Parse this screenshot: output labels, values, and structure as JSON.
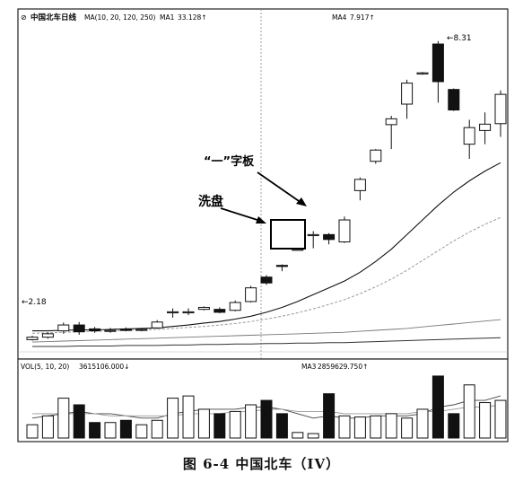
{
  "caption": "图 6-4   中国北车（IV）",
  "main_header": {
    "title": "中国北车日线",
    "ma_params": "MA(10, 20, 120, 250)",
    "ma1_label": "MA1",
    "ma1_value": "33.128↑",
    "ma4_label": "MA4",
    "ma4_value": "7.917↑"
  },
  "volume_header": {
    "title": "VOL(5, 10, 20)",
    "value": "3615106.000↓",
    "ma3_label": "MA3",
    "ma3_value": "2859629.750↑"
  },
  "annotations": {
    "washout": "洗盘",
    "yi_board": "“一”字板",
    "high_label": "←8.31",
    "low_label": "←2.18"
  },
  "colors": {
    "up": "#ffffff",
    "down": "#111111",
    "frame": "#222222"
  },
  "chart_data": [
    {
      "type": "candlestick",
      "title": "中国北车日线",
      "annotations": [
        "洗盘",
        "“一”字板",
        "8.31",
        "2.18"
      ],
      "candles": [
        {
          "o": 2.2,
          "h": 2.28,
          "l": 2.18,
          "c": 2.25
        },
        {
          "o": 2.25,
          "h": 2.35,
          "l": 2.22,
          "c": 2.32
        },
        {
          "o": 2.38,
          "h": 2.55,
          "l": 2.32,
          "c": 2.5
        },
        {
          "o": 2.5,
          "h": 2.56,
          "l": 2.3,
          "c": 2.36
        },
        {
          "o": 2.42,
          "h": 2.46,
          "l": 2.34,
          "c": 2.38
        },
        {
          "o": 2.38,
          "h": 2.44,
          "l": 2.34,
          "c": 2.39
        },
        {
          "o": 2.41,
          "h": 2.45,
          "l": 2.37,
          "c": 2.4
        },
        {
          "o": 2.4,
          "h": 2.44,
          "l": 2.37,
          "c": 2.41
        },
        {
          "o": 2.44,
          "h": 2.6,
          "l": 2.42,
          "c": 2.56
        },
        {
          "o": 2.77,
          "h": 2.84,
          "l": 2.65,
          "c": 2.77
        },
        {
          "o": 2.76,
          "h": 2.84,
          "l": 2.7,
          "c": 2.77
        },
        {
          "o": 2.82,
          "h": 2.88,
          "l": 2.8,
          "c": 2.86
        },
        {
          "o": 2.82,
          "h": 2.86,
          "l": 2.74,
          "c": 2.76
        },
        {
          "o": 2.8,
          "h": 3.0,
          "l": 2.78,
          "c": 2.96
        },
        {
          "o": 2.98,
          "h": 3.3,
          "l": 2.96,
          "c": 3.26
        },
        {
          "o": 3.48,
          "h": 3.52,
          "l": 3.32,
          "c": 3.36
        },
        {
          "o": 3.72,
          "h": 3.74,
          "l": 3.6,
          "c": 3.71
        },
        {
          "o": 4.05,
          "h": 4.05,
          "l": 4.05,
          "c": 4.05
        },
        {
          "o": 4.35,
          "h": 4.42,
          "l": 4.07,
          "c": 4.35
        },
        {
          "o": 4.35,
          "h": 4.38,
          "l": 4.15,
          "c": 4.25
        },
        {
          "o": 4.2,
          "h": 4.72,
          "l": 4.18,
          "c": 4.65
        },
        {
          "o": 5.25,
          "h": 5.52,
          "l": 5.05,
          "c": 5.48
        },
        {
          "o": 5.85,
          "h": 6.1,
          "l": 5.8,
          "c": 6.08
        },
        {
          "o": 6.6,
          "h": 6.78,
          "l": 6.1,
          "c": 6.72
        },
        {
          "o": 7.02,
          "h": 7.52,
          "l": 6.72,
          "c": 7.45
        },
        {
          "o": 7.64,
          "h": 7.68,
          "l": 7.62,
          "c": 7.66
        },
        {
          "o": 8.25,
          "h": 8.31,
          "l": 7.05,
          "c": 7.48
        },
        {
          "o": 7.32,
          "h": 7.34,
          "l": 6.88,
          "c": 6.9
        },
        {
          "o": 6.2,
          "h": 6.7,
          "l": 5.9,
          "c": 6.54
        },
        {
          "o": 6.48,
          "h": 6.85,
          "l": 6.2,
          "c": 6.61
        },
        {
          "o": 6.62,
          "h": 7.3,
          "l": 6.35,
          "c": 7.22
        }
      ],
      "moving_averages": [
        {
          "name": "MA1",
          "values": [
            2.38,
            2.38,
            2.39,
            2.4,
            2.4,
            2.41,
            2.42,
            2.43,
            2.44,
            2.47,
            2.5,
            2.54,
            2.57,
            2.62,
            2.68,
            2.76,
            2.86,
            2.98,
            3.12,
            3.26,
            3.4,
            3.58,
            3.8,
            4.05,
            4.35,
            4.65,
            4.95,
            5.22,
            5.45,
            5.65,
            5.82
          ]
        },
        {
          "name": "MA2",
          "values": [
            2.33,
            2.34,
            2.35,
            2.36,
            2.37,
            2.38,
            2.39,
            2.4,
            2.41,
            2.43,
            2.45,
            2.47,
            2.5,
            2.53,
            2.57,
            2.62,
            2.68,
            2.75,
            2.83,
            2.92,
            3.02,
            3.14,
            3.28,
            3.44,
            3.62,
            3.82,
            4.02,
            4.22,
            4.4,
            4.56,
            4.7
          ]
        },
        {
          "name": "MA3",
          "values": [
            2.15,
            2.16,
            2.17,
            2.18,
            2.19,
            2.2,
            2.21,
            2.22,
            2.23,
            2.24,
            2.25,
            2.26,
            2.27,
            2.28,
            2.29,
            2.3,
            2.31,
            2.32,
            2.33,
            2.34,
            2.35,
            2.37,
            2.39,
            2.41,
            2.43,
            2.46,
            2.49,
            2.52,
            2.55,
            2.58,
            2.61
          ]
        },
        {
          "name": "MA4",
          "values": [
            2.06,
            2.06,
            2.06,
            2.07,
            2.07,
            2.07,
            2.08,
            2.08,
            2.08,
            2.09,
            2.09,
            2.1,
            2.1,
            2.11,
            2.11,
            2.12,
            2.12,
            2.13,
            2.13,
            2.14,
            2.14,
            2.15,
            2.16,
            2.17,
            2.18,
            2.19,
            2.2,
            2.21,
            2.22,
            2.23,
            2.24
          ]
        }
      ],
      "ylim": [
        1.95,
        8.6
      ]
    },
    {
      "type": "bar",
      "title": "VOL(5, 10, 20)",
      "values": [
        0.6,
        1.0,
        1.8,
        1.5,
        0.7,
        0.7,
        0.8,
        0.6,
        0.8,
        1.8,
        1.9,
        1.3,
        1.1,
        1.2,
        1.5,
        1.7,
        1.1,
        0.25,
        0.2,
        2.0,
        1.0,
        0.95,
        1.0,
        1.1,
        0.9,
        1.3,
        2.8,
        1.1,
        2.4,
        1.6,
        1.7
      ],
      "moving_averages": [
        {
          "name": "MA1",
          "values": [
            0.9,
            1.0,
            1.1,
            1.2,
            1.1,
            1.1,
            1.0,
            0.9,
            0.9,
            1.1,
            1.2,
            1.3,
            1.3,
            1.3,
            1.4,
            1.4,
            1.3,
            1.1,
            0.9,
            1.0,
            0.9,
            0.9,
            1.0,
            1.0,
            1.0,
            1.1,
            1.4,
            1.5,
            1.7,
            1.7,
            1.9
          ]
        },
        {
          "name": "MA2",
          "values": [
            1.1,
            1.1,
            1.1,
            1.1,
            1.1,
            1.0,
            1.0,
            1.0,
            1.0,
            1.0,
            1.1,
            1.1,
            1.1,
            1.2,
            1.2,
            1.3,
            1.3,
            1.2,
            1.2,
            1.2,
            1.1,
            1.1,
            1.1,
            1.1,
            1.1,
            1.2,
            1.2,
            1.3,
            1.4,
            1.4,
            1.5
          ]
        }
      ],
      "ylim": [
        0,
        3.0
      ]
    }
  ]
}
